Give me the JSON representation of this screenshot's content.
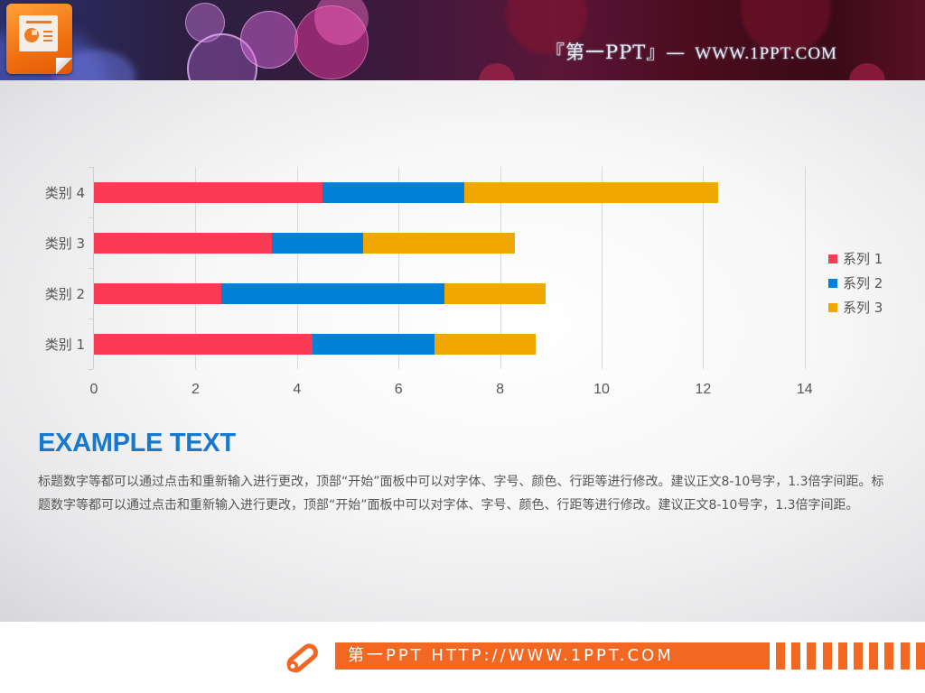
{
  "header": {
    "title_cn": "『第一PPT』—",
    "title_url": "WWW.1PPT.COM",
    "logo_icon": "powerpoint-icon"
  },
  "chart_data": {
    "type": "bar",
    "orientation": "horizontal",
    "stacked": true,
    "categories": [
      "类别 1",
      "类别 2",
      "类别 3",
      "类别 4"
    ],
    "series": [
      {
        "name": "系列 1",
        "color": "#fb3b56",
        "values": [
          4.3,
          2.5,
          3.5,
          4.5
        ]
      },
      {
        "name": "系列 2",
        "color": "#0080d6",
        "values": [
          2.4,
          4.4,
          1.8,
          2.8
        ]
      },
      {
        "name": "系列 3",
        "color": "#f0a800",
        "values": [
          2.0,
          2.0,
          3.0,
          5.0
        ]
      }
    ],
    "title": "",
    "xlabel": "",
    "ylabel": "",
    "xlim": [
      0,
      14
    ],
    "xticks": [
      "0",
      "2",
      "4",
      "6",
      "8",
      "10",
      "12",
      "14"
    ],
    "grid": true,
    "legend_position": "right"
  },
  "content": {
    "title": "EXAMPLE TEXT",
    "body": "标题数字等都可以通过点击和重新输入进行更改，顶部“开始”面板中可以对字体、字号、颜色、行距等进行修改。建议正文8-10号字，1.3倍字间距。标题数字等都可以通过点击和重新输入进行更改，顶部“开始”面板中可以对字体、字号、颜色、行距等进行修改。建议正文8-10号字，1.3倍字间距。"
  },
  "footer": {
    "text": "第一PPT HTTP://WWW.1PPT.COM",
    "icon": "pencil-icon",
    "accent": "#f26722"
  }
}
